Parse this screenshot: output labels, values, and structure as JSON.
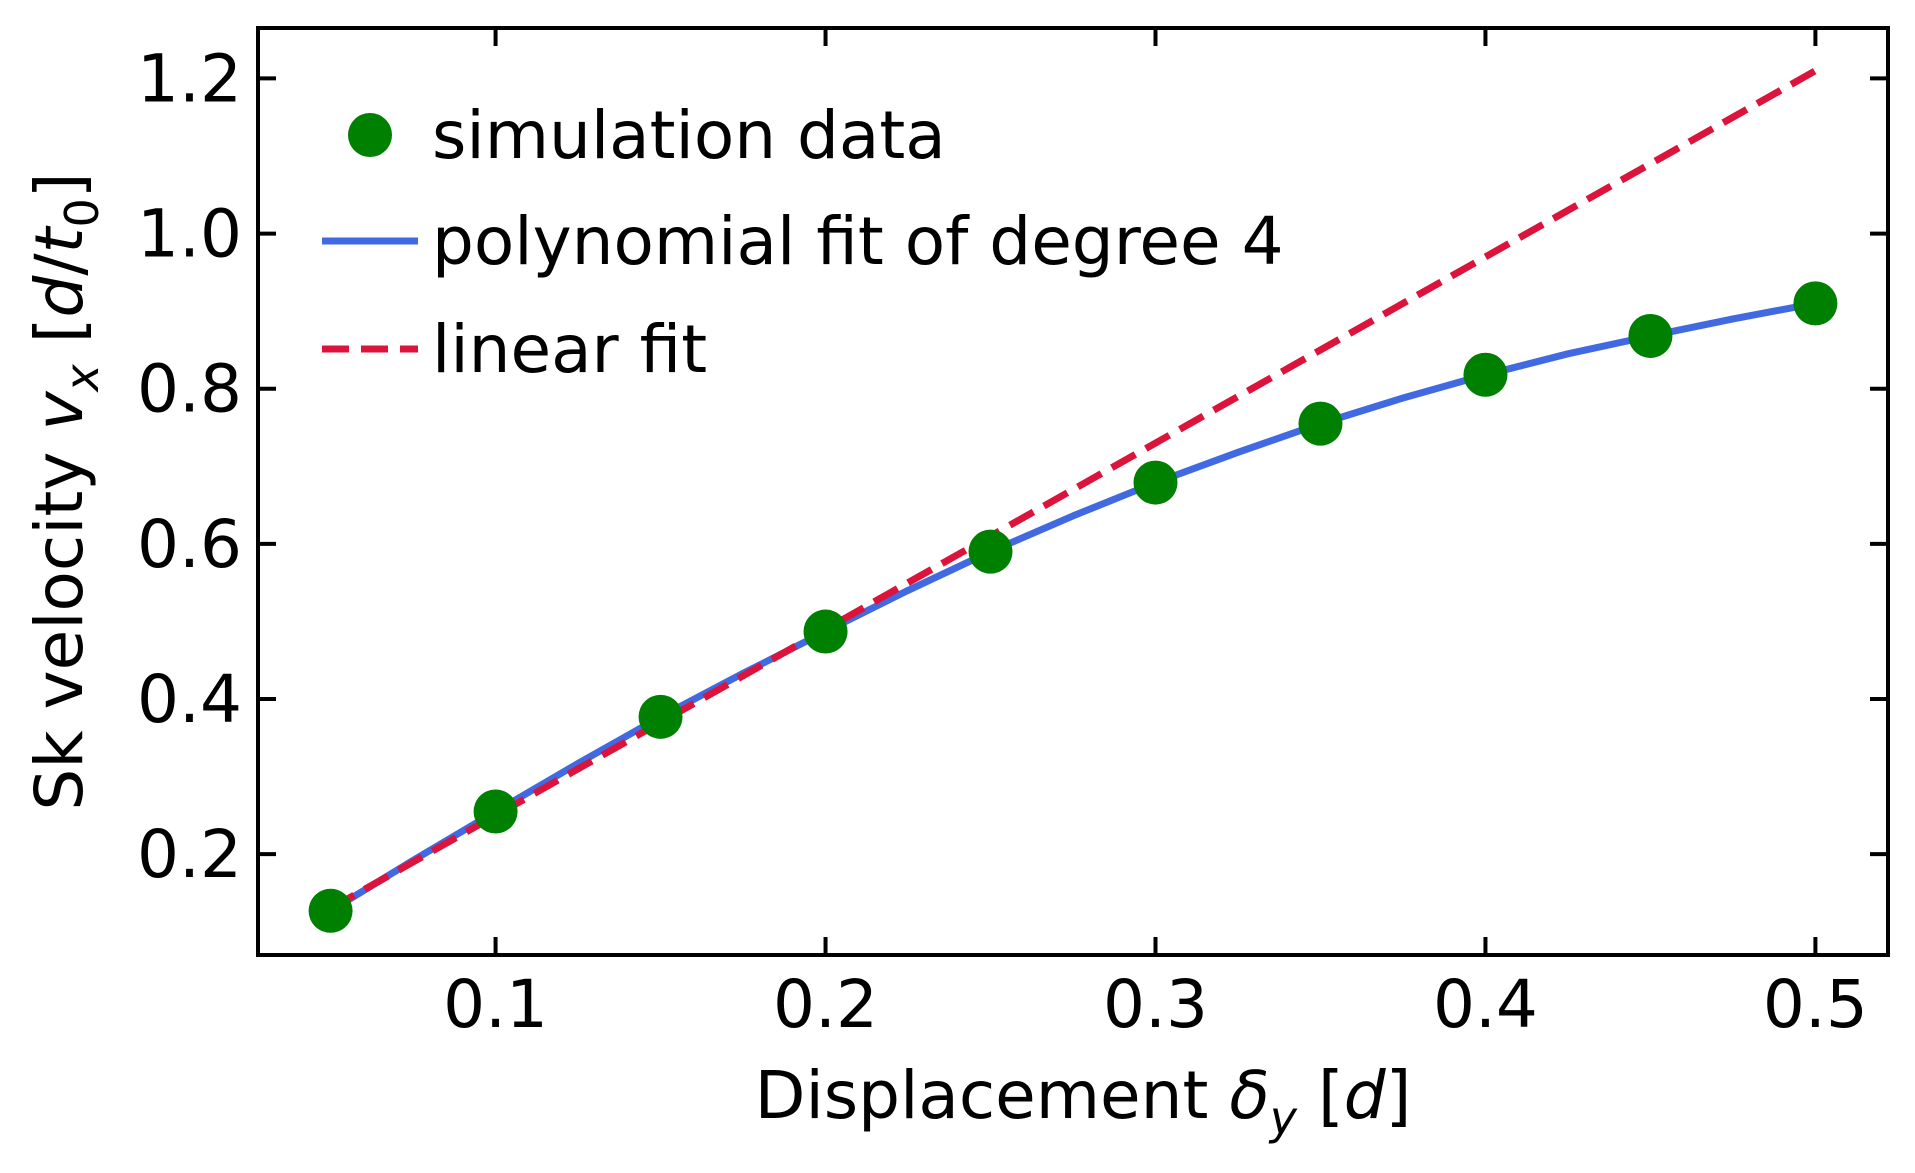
{
  "chart_data": {
    "type": "scatter",
    "xlabel": {
      "prefix": "Displacement ",
      "symbol": "δ",
      "subscript": "y",
      "unit_open": " [",
      "unit": "d",
      "unit_close": "]"
    },
    "ylabel": {
      "prefix": "Sk velocity ",
      "symbol": "v",
      "subscript": "x",
      "unit_open": " [",
      "unit_num": "d",
      "unit_slash": "/",
      "unit_den": "t",
      "unit_den_sub": "0",
      "unit_close": "]"
    },
    "xlim": [
      0.028,
      0.522
    ],
    "ylim": [
      0.07,
      1.265
    ],
    "x_ticks": [
      0.1,
      0.2,
      0.3,
      0.4,
      0.5
    ],
    "x_tick_labels": [
      "0.1",
      "0.2",
      "0.3",
      "0.4",
      "0.5"
    ],
    "y_ticks": [
      0.2,
      0.4,
      0.6,
      0.8,
      1.0,
      1.2
    ],
    "y_tick_labels": [
      "0.2",
      "0.4",
      "0.6",
      "0.8",
      "1.0",
      "1.2"
    ],
    "legend_position": "upper-left",
    "series": [
      {
        "name": "simulation data",
        "kind": "scatter",
        "color": "#008000",
        "x": [
          0.05,
          0.1,
          0.15,
          0.2,
          0.25,
          0.3,
          0.35,
          0.4,
          0.45,
          0.5
        ],
        "y": [
          0.127,
          0.255,
          0.377,
          0.487,
          0.59,
          0.679,
          0.755,
          0.818,
          0.868,
          0.91
        ]
      },
      {
        "name": "polynomial fit of degree 4",
        "kind": "line",
        "style": "solid",
        "color": "#4169E1",
        "x": [
          0.05,
          0.075,
          0.1,
          0.125,
          0.15,
          0.175,
          0.2,
          0.225,
          0.25,
          0.275,
          0.3,
          0.325,
          0.35,
          0.375,
          0.4,
          0.425,
          0.45,
          0.475,
          0.5
        ],
        "y": [
          0.127,
          0.192,
          0.255,
          0.317,
          0.377,
          0.433,
          0.487,
          0.54,
          0.59,
          0.636,
          0.679,
          0.718,
          0.755,
          0.788,
          0.818,
          0.845,
          0.868,
          0.89,
          0.91
        ]
      },
      {
        "name": "linear fit",
        "kind": "line",
        "style": "dashed",
        "color": "#DC143C",
        "x": [
          0.05,
          0.5
        ],
        "y": [
          0.13,
          1.21
        ]
      }
    ]
  }
}
